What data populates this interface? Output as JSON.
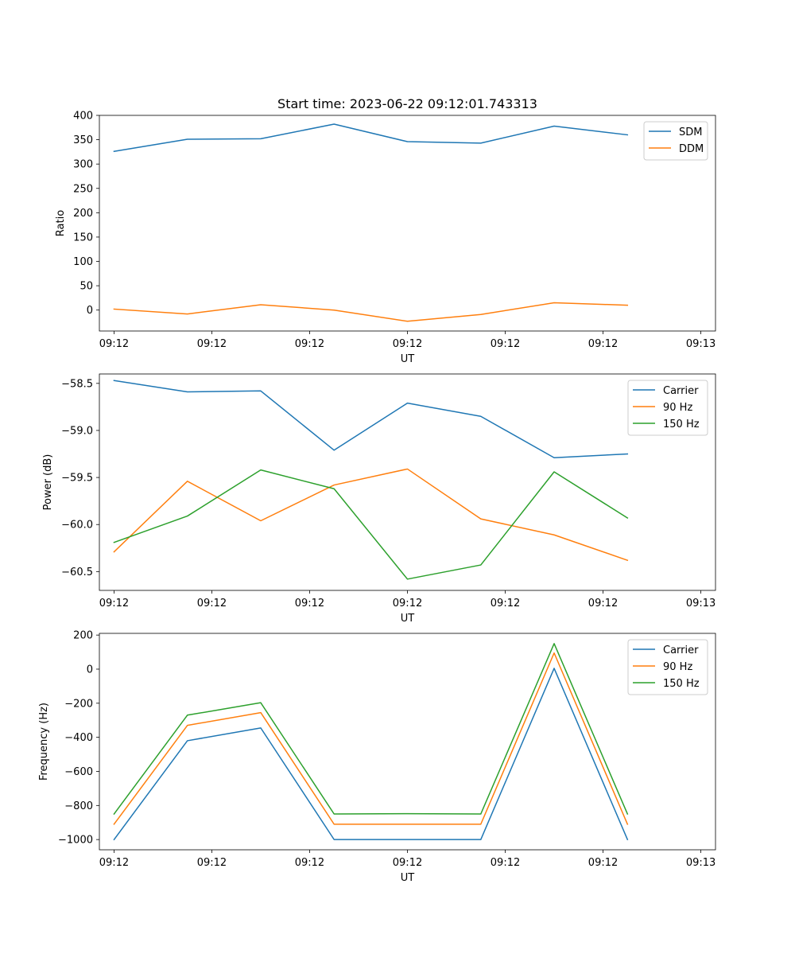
{
  "figure": {
    "title": "Start time: 2023-06-22 09:12:01.743313"
  },
  "chart_data": [
    {
      "type": "line",
      "title": "Start time: 2023-06-22 09:12:01.743313",
      "xlabel": "UT",
      "ylabel": "Ratio",
      "x": [
        1,
        2,
        3,
        4,
        5,
        6,
        7,
        8
      ],
      "x_tick_labels": [
        "09:12",
        "09:12",
        "09:12",
        "09:12",
        "09:12",
        "09:12",
        "09:13"
      ],
      "xlim": [
        0.8,
        9.2
      ],
      "ylim": [
        -43,
        400
      ],
      "yticks": [
        0,
        50,
        100,
        150,
        200,
        250,
        300,
        350,
        400
      ],
      "y_tick_labels": [
        "0",
        "50",
        "100",
        "150",
        "200",
        "250",
        "300",
        "350",
        "400"
      ],
      "legend_position": "top-right",
      "grid": false,
      "series": [
        {
          "name": "SDM",
          "color": "#1f77b4",
          "values": [
            326,
            351,
            352,
            382,
            346,
            343,
            378,
            360
          ]
        },
        {
          "name": "DDM",
          "color": "#ff7f0e",
          "values": [
            2,
            -8,
            11,
            0,
            -23,
            -9,
            15,
            10
          ]
        }
      ]
    },
    {
      "type": "line",
      "title": "",
      "xlabel": "UT",
      "ylabel": "Power (dB)",
      "x": [
        1,
        2,
        3,
        4,
        5,
        6,
        7,
        8
      ],
      "x_tick_labels": [
        "09:12",
        "09:12",
        "09:12",
        "09:12",
        "09:12",
        "09:12",
        "09:13"
      ],
      "xlim": [
        0.8,
        9.2
      ],
      "ylim": [
        -60.7,
        -58.4
      ],
      "yticks": [
        -60.5,
        -60.0,
        -59.5,
        -59.0,
        -58.5
      ],
      "y_tick_labels": [
        "−60.5",
        "−60.0",
        "−59.5",
        "−59.0",
        "−58.5"
      ],
      "legend_position": "top-right",
      "grid": false,
      "series": [
        {
          "name": "Carrier",
          "color": "#1f77b4",
          "values": [
            -58.47,
            -58.59,
            -58.58,
            -59.21,
            -58.71,
            -58.85,
            -59.29,
            -59.25
          ]
        },
        {
          "name": "90 Hz",
          "color": "#ff7f0e",
          "values": [
            -60.29,
            -59.54,
            -59.96,
            -59.58,
            -59.41,
            -59.94,
            -60.11,
            -60.38
          ]
        },
        {
          "name": "150 Hz",
          "color": "#2ca02c",
          "values": [
            -60.19,
            -59.91,
            -59.42,
            -59.62,
            -60.58,
            -60.43,
            -59.44,
            -59.93
          ]
        }
      ]
    },
    {
      "type": "line",
      "title": "",
      "xlabel": "UT",
      "ylabel": "Frequency (Hz)",
      "x": [
        1,
        2,
        3,
        4,
        5,
        6,
        7,
        8
      ],
      "x_tick_labels": [
        "09:12",
        "09:12",
        "09:12",
        "09:12",
        "09:12",
        "09:12",
        "09:13"
      ],
      "xlim": [
        0.8,
        9.2
      ],
      "ylim": [
        -1060,
        210
      ],
      "yticks": [
        -1000,
        -800,
        -600,
        -400,
        -200,
        0,
        200
      ],
      "y_tick_labels": [
        "−1000",
        "−800",
        "−600",
        "−400",
        "−200",
        "0",
        "200"
      ],
      "legend_position": "top-right",
      "grid": false,
      "series": [
        {
          "name": "Carrier",
          "color": "#1f77b4",
          "values": [
            -1000,
            -420,
            -345,
            -1000,
            -1000,
            -1000,
            5,
            -1000
          ]
        },
        {
          "name": "90 Hz",
          "color": "#ff7f0e",
          "values": [
            -910,
            -330,
            -255,
            -910,
            -910,
            -910,
            95,
            -910
          ]
        },
        {
          "name": "150 Hz",
          "color": "#2ca02c",
          "values": [
            -850,
            -270,
            -197,
            -850,
            -848,
            -850,
            150,
            -850
          ]
        }
      ]
    }
  ]
}
